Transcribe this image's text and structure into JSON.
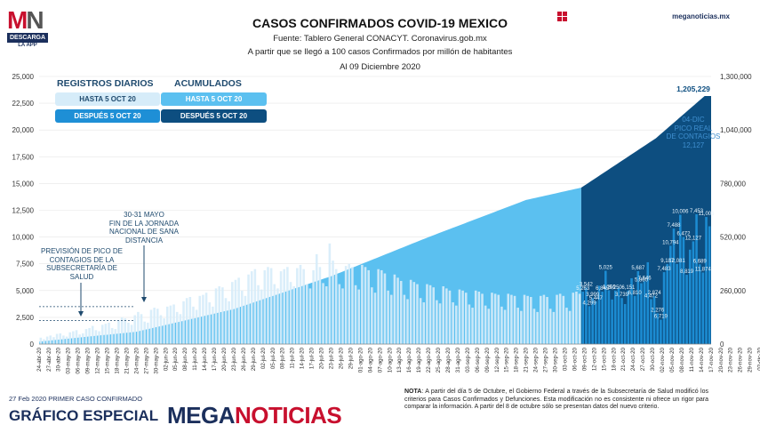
{
  "header": {
    "logo_mark_left": "M",
    "logo_mark_right": "N",
    "logo_sub": "DESCARGA",
    "logo_sub2": "LA APP",
    "site": "meganoticias.mx",
    "title": "CASOS CONFIRMADOS COVID-19 MEXICO",
    "source": "Fuente: Tablero General CONACYT. Coronavirus.gob.mx",
    "subtitle": "A partir que se llegó a 100 casos Confirmados por millón de habitantes",
    "date": "Al 09 Diciembre 2020"
  },
  "legend": {
    "daily_head": "REGISTROS DIARIOS",
    "cum_head": "ACUMULADOS",
    "daily_before": "HASTA 5 OCT 20",
    "daily_after": "DESPUÉS 5 OCT 20",
    "cum_before": "HASTA 5 OCT 20",
    "cum_after": "DESPUÉS 5 OCT 20"
  },
  "annotations": {
    "prevision": [
      "PREVISIÓN DE PICO DE",
      "CONTAGIOS DE LA",
      "SUBSECRETARÍA DE",
      "SALUD"
    ],
    "jornada": [
      "30-31 MAYO",
      "FIN DE LA JORNADA",
      "NACIONAL DE SANA",
      "DISTANCIA"
    ],
    "peak": [
      "04-DIC",
      "PICO REAL",
      "DE CONTAGIOS",
      "12,127"
    ]
  },
  "colors": {
    "daily_before": "#d6ecf9",
    "daily_after": "#1e8fd6",
    "cum_before": "#5bc0f0",
    "cum_after": "#0d4e80",
    "bar_labels": "#2d6fb6",
    "brand_red": "#c8102e",
    "brand_navy": "#1b2f5c"
  },
  "footer": {
    "first_case": "27 Feb 2020 PRIMER CASO CONFIRMADO",
    "grafico": "GRÁFICO ESPECIAL",
    "brand_left": "MEGA",
    "brand_right": "NOTICIAS",
    "note_label": "NOTA",
    "note": ": A partir del día 5 de Octubre, el Gobierno Federal a través de la Subsecretaría de Salud modificó los criterios para Casos Confirmados y Defunciones. Esta modificación no es consistente ni ofrece un rigor para comparar la información. A partir del 8 de octubre sólo se presentan datos del nuevo criterio."
  },
  "chart_data": {
    "type": "bar",
    "title": "CASOS CONFIRMADOS COVID-19 MEXICO",
    "y_left_ticks": [
      "0",
      "2,500",
      "5,000",
      "7,500",
      "10,000",
      "12,500",
      "15,000",
      "17,500",
      "20,000",
      "22,500",
      "25,000"
    ],
    "y_left_range": [
      0,
      25000
    ],
    "y_right_ticks": [
      "0",
      "260,000",
      "520,000",
      "780,000",
      "1,040,000",
      "1,300,000"
    ],
    "y_right_range": [
      0,
      1300000
    ],
    "x_ticks": [
      "24-abr-20",
      "27-abr-20",
      "30-abr-20",
      "03-may-20",
      "06-may-20",
      "09-may-20",
      "12-may-20",
      "15-may-20",
      "18-may-20",
      "21-may-20",
      "24-may-20",
      "27-may-20",
      "30-may-20",
      "02-jun-20",
      "05-jun-20",
      "08-jun-20",
      "11-jun-20",
      "14-jun-20",
      "17-jun-20",
      "20-jun-20",
      "23-jun-20",
      "26-jun-20",
      "29-jun-20",
      "02-jul-20",
      "05-jul-20",
      "08-jul-20",
      "11-jul-20",
      "14-jul-20",
      "17-jul-20",
      "20-jul-20",
      "23-jul-20",
      "26-jul-20",
      "29-jul-20",
      "01-ago-20",
      "04-ago-20",
      "07-ago-20",
      "10-ago-20",
      "13-ago-20",
      "16-ago-20",
      "19-ago-20",
      "22-ago-20",
      "25-ago-20",
      "28-ago-20",
      "31-ago-20",
      "03-sep-20",
      "06-sep-20",
      "09-sep-20",
      "12-sep-20",
      "15-sep-20",
      "18-sep-20",
      "21-sep-20",
      "24-sep-20",
      "27-sep-20",
      "30-sep-20",
      "03-oct-20",
      "06-oct-20",
      "09-oct-20",
      "12-oct-20",
      "15-oct-20",
      "18-oct-20",
      "21-oct-20",
      "24-oct-20",
      "27-oct-20",
      "30-oct-20",
      "02-nov-20",
      "05-nov-20",
      "08-nov-20",
      "11-nov-20",
      "14-nov-20",
      "17-nov-20",
      "20-nov-20",
      "23-nov-20",
      "26-nov-20",
      "29-nov-20",
      "02-dic-20",
      "05-dic-20",
      "08-dic-20"
    ],
    "daily_period_start": "24-abr-20",
    "daily_change_index": 167,
    "daily": [
      600,
      450,
      700,
      800,
      650,
      950,
      1000,
      800,
      700,
      1100,
      1200,
      1300,
      900,
      1000,
      1400,
      1500,
      1700,
      1300,
      1200,
      1800,
      1900,
      2000,
      1500,
      1400,
      2200,
      2500,
      2400,
      2000,
      1800,
      2700,
      3000,
      2800,
      2100,
      2000,
      3200,
      3400,
      3300,
      2700,
      2400,
      3500,
      3600,
      3700,
      3000,
      2800,
      4000,
      4300,
      4400,
      3500,
      3200,
      4500,
      4600,
      4800,
      3900,
      3500,
      5200,
      5400,
      5300,
      4300,
      4000,
      5800,
      6000,
      6200,
      5000,
      4500,
      6500,
      6800,
      7000,
      5500,
      5100,
      6900,
      7200,
      7100,
      5600,
      5200,
      6800,
      7000,
      7200,
      5800,
      5400,
      7100,
      7400,
      7000,
      5600,
      5200,
      6900,
      8400,
      7200,
      5700,
      5400,
      9400,
      7800,
      7000,
      5600,
      5200,
      7300,
      7500,
      7200,
      5500,
      5100,
      7400,
      7200,
      6900,
      5300,
      4800,
      7000,
      6900,
      6600,
      5000,
      4600,
      6500,
      6200,
      5900,
      4600,
      4200,
      6000,
      5800,
      5600,
      4300,
      3900,
      5600,
      5500,
      5300,
      4100,
      3800,
      5400,
      5200,
      5000,
      3900,
      3600,
      5100,
      5000,
      4800,
      3700,
      3400,
      5000,
      4900,
      4700,
      3600,
      3300,
      4800,
      4700,
      4600,
      3500,
      3200,
      4700,
      4600,
      4500,
      3400,
      3100,
      4600,
      4500,
      4400,
      3300,
      3000,
      4500,
      4600,
      4400,
      3300,
      3000,
      4600,
      4700,
      4500,
      3400,
      3100,
      4800,
      4900,
      4700,
      4900,
      5263,
      3542,
      4299,
      3999,
      5447,
      4900,
      6845,
      5025,
      4166,
      5000,
      5250,
      4300,
      3739,
      5000,
      6151,
      4500,
      6810,
      5687,
      5860,
      7646,
      4200,
      4472,
      2874,
      2276,
      6719,
      7483,
      9187,
      10794,
      7488,
      12081,
      10006,
      6472,
      8819,
      9600,
      12127,
      7453,
      6689,
      11874,
      11006
    ],
    "daily_labels": [
      {
        "i": 167,
        "v": "5,263"
      },
      {
        "i": 168,
        "v": "3,542"
      },
      {
        "i": 169,
        "v": "4,299"
      },
      {
        "i": 170,
        "v": "3,999"
      },
      {
        "i": 171,
        "v": "5,447"
      },
      {
        "i": 173,
        "v": "6,845"
      },
      {
        "i": 174,
        "v": "5,025"
      },
      {
        "i": 175,
        "v": "4,166"
      },
      {
        "i": 177,
        "v": "5,250"
      },
      {
        "i": 179,
        "v": "3,739"
      },
      {
        "i": 181,
        "v": "6,151"
      },
      {
        "i": 183,
        "v": "6,810"
      },
      {
        "i": 184,
        "v": "5,687"
      },
      {
        "i": 185,
        "v": "5,860"
      },
      {
        "i": 186,
        "v": "7,646"
      },
      {
        "i": 188,
        "v": "4,472"
      },
      {
        "i": 189,
        "v": "2,874"
      },
      {
        "i": 190,
        "v": "2,276"
      },
      {
        "i": 191,
        "v": "6,719"
      },
      {
        "i": 192,
        "v": "7,483"
      },
      {
        "i": 193,
        "v": "9,187"
      },
      {
        "i": 194,
        "v": "10,794"
      },
      {
        "i": 195,
        "v": "7,488"
      },
      {
        "i": 196,
        "v": "12,081"
      },
      {
        "i": 197,
        "v": "10,006"
      },
      {
        "i": 198,
        "v": "6,472"
      },
      {
        "i": 199,
        "v": "8,819"
      },
      {
        "i": 201,
        "v": "12,127"
      },
      {
        "i": 202,
        "v": "7,453"
      },
      {
        "i": 203,
        "v": "6,689"
      },
      {
        "i": 204,
        "v": "11,874"
      },
      {
        "i": 205,
        "v": "11,006"
      }
    ],
    "cumulative_points": [
      {
        "i": 0,
        "v": 12000
      },
      {
        "i": 30,
        "v": 60000
      },
      {
        "i": 60,
        "v": 170000
      },
      {
        "i": 90,
        "v": 330000
      },
      {
        "i": 120,
        "v": 520000
      },
      {
        "i": 150,
        "v": 700000
      },
      {
        "i": 167,
        "v": 760000
      },
      {
        "i": 190,
        "v": 1000000
      },
      {
        "i": 205,
        "v": 1205229
      }
    ],
    "cumulative_final_label": "1,205,229",
    "legend_position": "top-left"
  }
}
